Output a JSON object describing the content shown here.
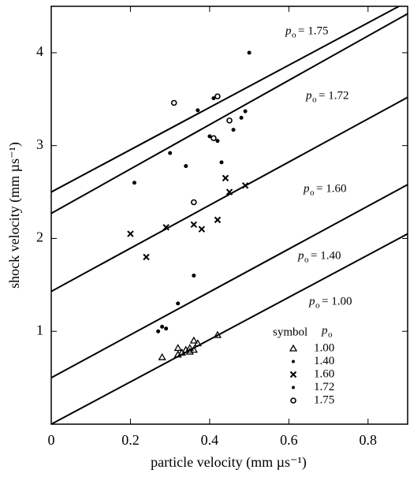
{
  "chart_data": {
    "type": "scatter",
    "x_label": "particle velocity (mm µs⁻¹)",
    "y_label": "shock velocity (mm µs⁻¹)",
    "xlim": [
      0,
      0.9
    ],
    "ylim": [
      0,
      4.5
    ],
    "xticks": [
      0,
      0.2,
      0.4,
      0.6,
      0.8
    ],
    "yticks": [
      1,
      2,
      3,
      4
    ],
    "legend": {
      "symbol": "symbol",
      "symbol_header": "p",
      "subscript": "o"
    },
    "series": [
      {
        "name": "1.00",
        "marker": "triangle",
        "color": "#000000",
        "x": [
          0.28,
          0.32,
          0.32,
          0.33,
          0.34,
          0.35,
          0.35,
          0.36,
          0.36,
          0.37,
          0.42
        ],
        "values": [
          0.72,
          0.75,
          0.82,
          0.77,
          0.8,
          0.82,
          0.78,
          0.9,
          0.8,
          0.87,
          0.96
        ]
      },
      {
        "name": "1.40",
        "marker": "dot",
        "color": "#000000",
        "x": [
          0.27,
          0.28,
          0.29,
          0.32,
          0.36
        ],
        "values": [
          1.0,
          1.05,
          1.03,
          1.3,
          1.6
        ]
      },
      {
        "name": "1.60",
        "marker": "cross",
        "color": "#000000",
        "x": [
          0.2,
          0.24,
          0.29,
          0.36,
          0.38,
          0.42,
          0.44,
          0.45,
          0.49
        ],
        "values": [
          2.05,
          1.8,
          2.12,
          2.15,
          2.1,
          2.2,
          2.65,
          2.5,
          2.57
        ]
      },
      {
        "name": "1.72",
        "marker": "dot",
        "color": "#000000",
        "x": [
          0.21,
          0.3,
          0.34,
          0.37,
          0.4,
          0.41,
          0.42,
          0.43,
          0.46,
          0.48,
          0.49,
          0.5
        ],
        "values": [
          2.6,
          2.92,
          2.78,
          3.38,
          3.1,
          3.51,
          3.05,
          2.82,
          3.17,
          3.3,
          3.37,
          4.0
        ]
      },
      {
        "name": "1.75",
        "marker": "circle",
        "color": "#000000",
        "x": [
          0.31,
          0.36,
          0.41,
          0.42,
          0.45
        ],
        "values": [
          3.46,
          2.39,
          3.08,
          3.53,
          3.27
        ]
      }
    ],
    "lines": [
      {
        "label_symbol": "p",
        "label_subscript": "o",
        "label": "= 1.75",
        "x": [
          0,
          0.9
        ],
        "values": [
          2.5,
          4.55
        ]
      },
      {
        "label_symbol": "p",
        "label_subscript": "o",
        "label": "= 1.72",
        "x": [
          0,
          0.9
        ],
        "values": [
          2.27,
          4.42
        ]
      },
      {
        "label_symbol": "p",
        "label_subscript": "o",
        "label": "= 1.60",
        "x": [
          0,
          0.9
        ],
        "values": [
          1.43,
          3.52
        ]
      },
      {
        "label_symbol": "p",
        "label_subscript": "o",
        "label": "= 1.40",
        "x": [
          0,
          0.9
        ],
        "values": [
          0.5,
          2.58
        ]
      },
      {
        "label_symbol": "p",
        "label_subscript": "o",
        "label": "= 1.00",
        "x": [
          0,
          0.9
        ],
        "values": [
          0,
          2.05
        ]
      }
    ]
  }
}
